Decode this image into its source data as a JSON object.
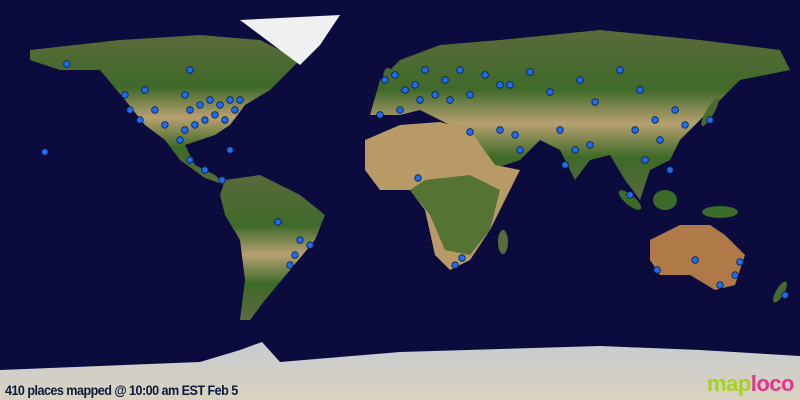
{
  "caption": "410 places mapped @ 10:00 am EST Feb 5",
  "logo": {
    "part1": "map",
    "part2": "loco",
    "color1": "#a6d41c",
    "color2": "#e4348c"
  },
  "colors": {
    "ocean": "#0b0b3d",
    "marker": "#1e6cf0",
    "marker_outline": "#08204a"
  },
  "projection": "equirectangular",
  "places": [
    [
      -149.9,
      61.2
    ],
    [
      -123.8,
      47.3
    ],
    [
      -121.5,
      40.5
    ],
    [
      -114.8,
      49.5
    ],
    [
      -117,
      36
    ],
    [
      -110.3,
      40.5
    ],
    [
      -105.8,
      33.8
    ],
    [
      -96.8,
      47.3
    ],
    [
      -94.5,
      40.5
    ],
    [
      -90,
      42.8
    ],
    [
      -85.5,
      45
    ],
    [
      -81,
      42.8
    ],
    [
      -76.5,
      45
    ],
    [
      -72,
      45
    ],
    [
      -96.8,
      31.5
    ],
    [
      -92.3,
      33.8
    ],
    [
      -87.8,
      36
    ],
    [
      -83.3,
      38.3
    ],
    [
      -78.8,
      36
    ],
    [
      -74.3,
      40.5
    ],
    [
      -94.5,
      58.5
    ],
    [
      -99,
      27
    ],
    [
      -94.5,
      18
    ],
    [
      -87.8,
      13.5
    ],
    [
      -76.5,
      22.5
    ],
    [
      -159.8,
      21.6
    ],
    [
      -80.1,
      9
    ],
    [
      -54.9,
      -9.9
    ],
    [
      -40.5,
      -20.3
    ],
    [
      -47.3,
      -24.8
    ],
    [
      -49.5,
      -29.3
    ],
    [
      -45,
      -18
    ],
    [
      -6.8,
      54
    ],
    [
      -2.3,
      56.3
    ],
    [
      2.3,
      49.5
    ],
    [
      6.8,
      51.8
    ],
    [
      11.3,
      58.5
    ],
    [
      15.8,
      47.3
    ],
    [
      20.3,
      54
    ],
    [
      27,
      58.5
    ],
    [
      31.5,
      47.3
    ],
    [
      38.3,
      56.3
    ],
    [
      45,
      51.8
    ],
    [
      -9,
      38.3
    ],
    [
      0,
      40.5
    ],
    [
      9,
      45
    ],
    [
      22.5,
      45
    ],
    [
      8.1,
      9.9
    ],
    [
      31.5,
      30.6
    ],
    [
      45,
      31.5
    ],
    [
      51.8,
      29.3
    ],
    [
      54,
      22.5
    ],
    [
      24.8,
      -29.3
    ],
    [
      27.9,
      -26.1
    ],
    [
      49.5,
      51.8
    ],
    [
      67.5,
      48.6
    ],
    [
      87.8,
      44.1
    ],
    [
      72,
      31.5
    ],
    [
      78.8,
      22.5
    ],
    [
      74.3,
      15.8
    ],
    [
      85.5,
      24.8
    ],
    [
      99,
      58.5
    ],
    [
      108,
      49.5
    ],
    [
      105.8,
      31.5
    ],
    [
      114.8,
      36
    ],
    [
      117,
      27
    ],
    [
      110.3,
      18
    ],
    [
      121.5,
      13.5
    ],
    [
      123.8,
      40.5
    ],
    [
      128.3,
      33.8
    ],
    [
      139.5,
      36
    ],
    [
      103.5,
      2.3
    ],
    [
      81,
      54
    ],
    [
      58.5,
      57.6
    ],
    [
      115.7,
      -31.5
    ],
    [
      132.8,
      -27
    ],
    [
      144,
      -38.3
    ],
    [
      150.8,
      -33.8
    ],
    [
      153,
      -27.9
    ],
    [
      173.3,
      -42.8
    ]
  ]
}
